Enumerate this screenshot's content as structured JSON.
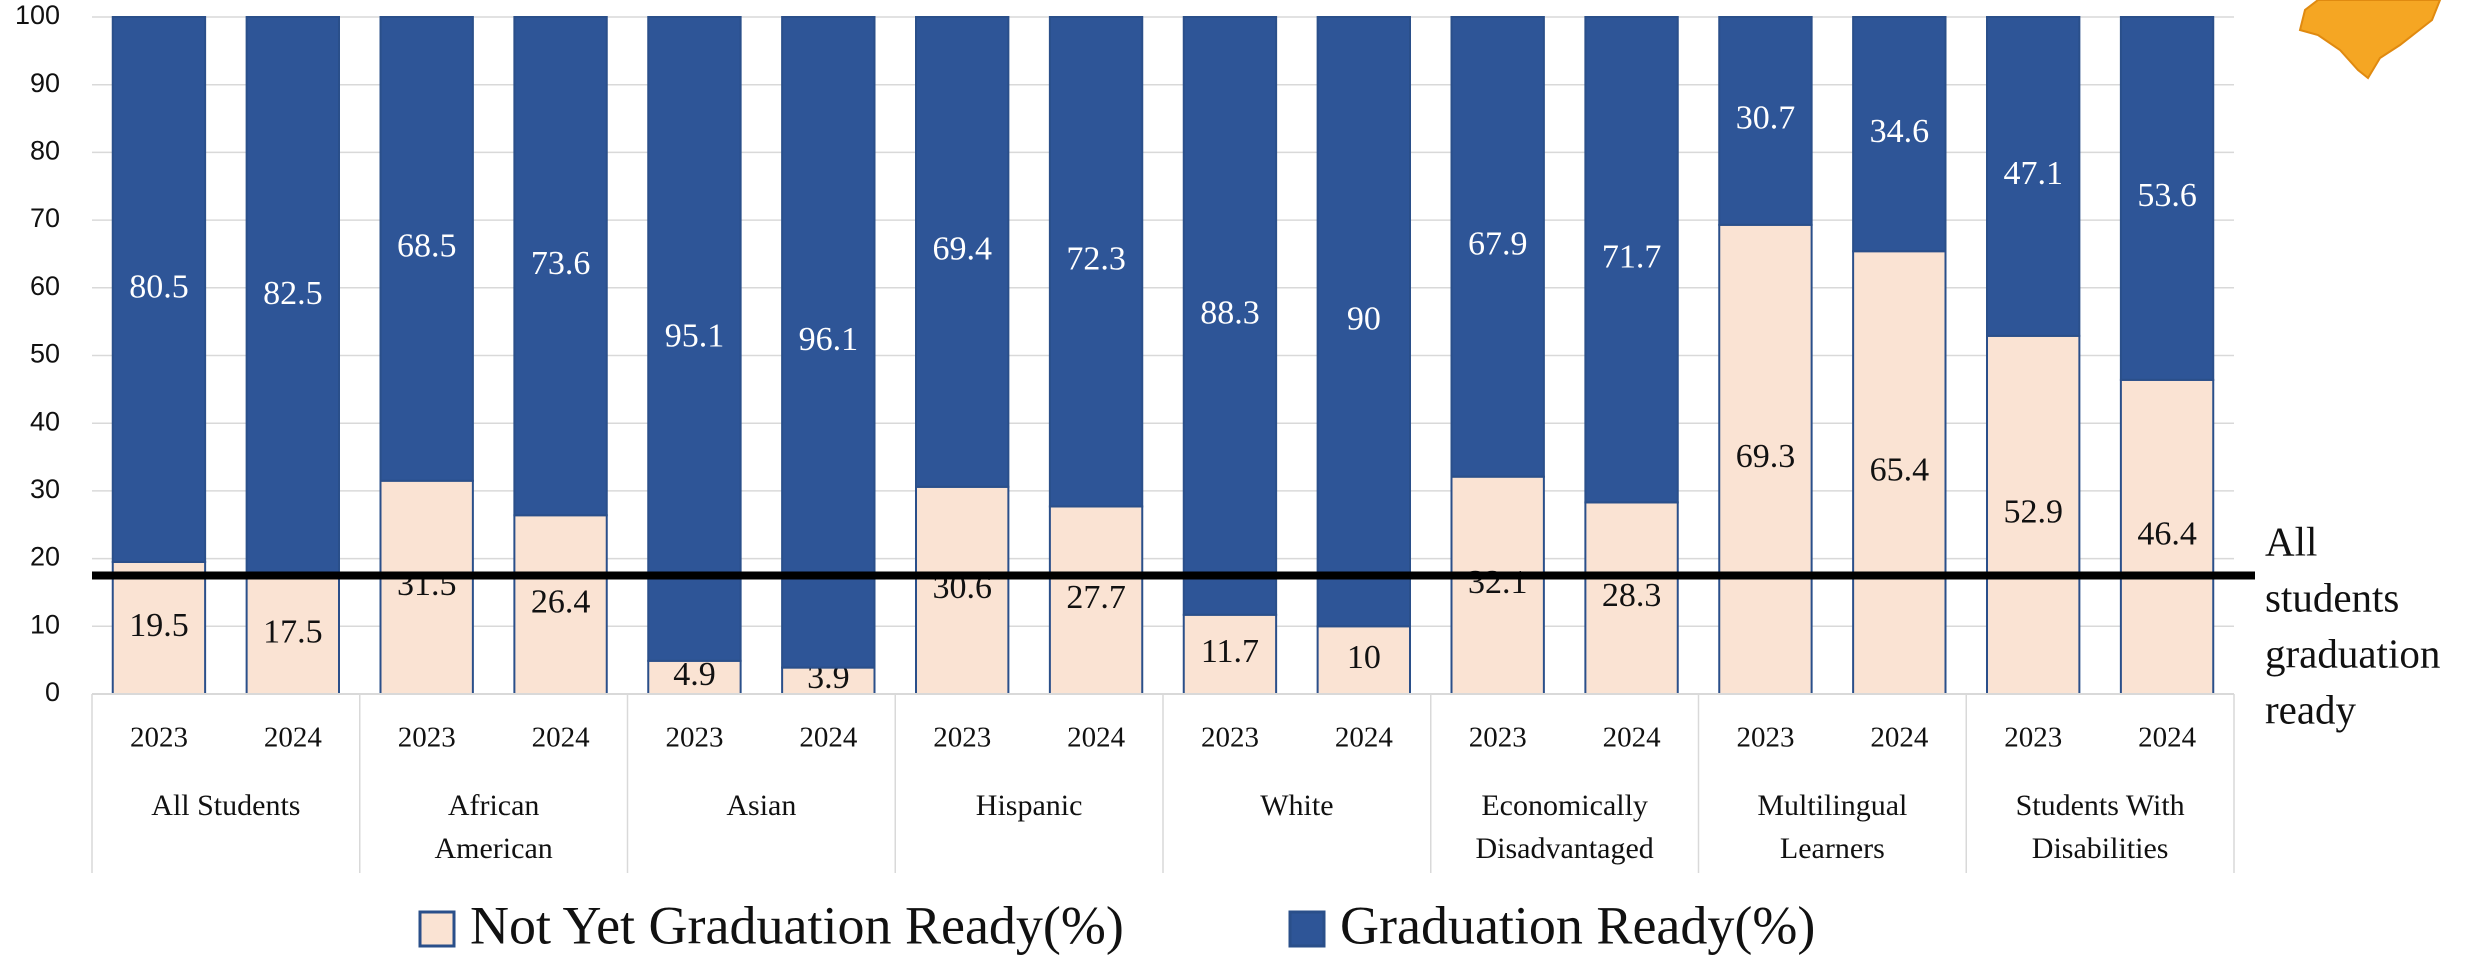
{
  "chart_data": {
    "type": "stacked_bar",
    "categories": [
      "2023",
      "2024",
      "2023",
      "2024",
      "2023",
      "2024",
      "2023",
      "2024",
      "2023",
      "2024",
      "2023",
      "2024",
      "2023",
      "2024",
      "2023",
      "2024"
    ],
    "groups": [
      [
        "All Students"
      ],
      [
        "African",
        "American"
      ],
      [
        "Asian"
      ],
      [
        "Hispanic"
      ],
      [
        "White"
      ],
      [
        "Economically",
        "Disadvantaged"
      ],
      [
        "Multilingual",
        "Learners"
      ],
      [
        "Students With",
        "Disabilities"
      ]
    ],
    "series": [
      {
        "name": "Not Yet Graduation Ready(%)",
        "color": "#fae3d3",
        "values": [
          19.5,
          17.5,
          31.5,
          26.4,
          4.9,
          3.9,
          30.6,
          27.7,
          11.7,
          10,
          32.1,
          28.3,
          69.3,
          65.4,
          52.9,
          46.4
        ]
      },
      {
        "name": "Graduation Ready(%)",
        "color": "#2e5597",
        "values": [
          80.5,
          82.5,
          68.5,
          73.6,
          95.1,
          96.1,
          69.4,
          72.3,
          88.3,
          90,
          67.9,
          71.7,
          30.7,
          34.6,
          47.1,
          53.6
        ]
      }
    ],
    "ylim": [
      0,
      100
    ],
    "yticks": [
      0,
      10,
      20,
      30,
      40,
      50,
      60,
      70,
      80,
      90,
      100
    ],
    "grid": true,
    "reference_line": {
      "value": 17.5,
      "label": [
        "All",
        "students",
        "graduation",
        "ready"
      ]
    },
    "legend": "bottom"
  }
}
